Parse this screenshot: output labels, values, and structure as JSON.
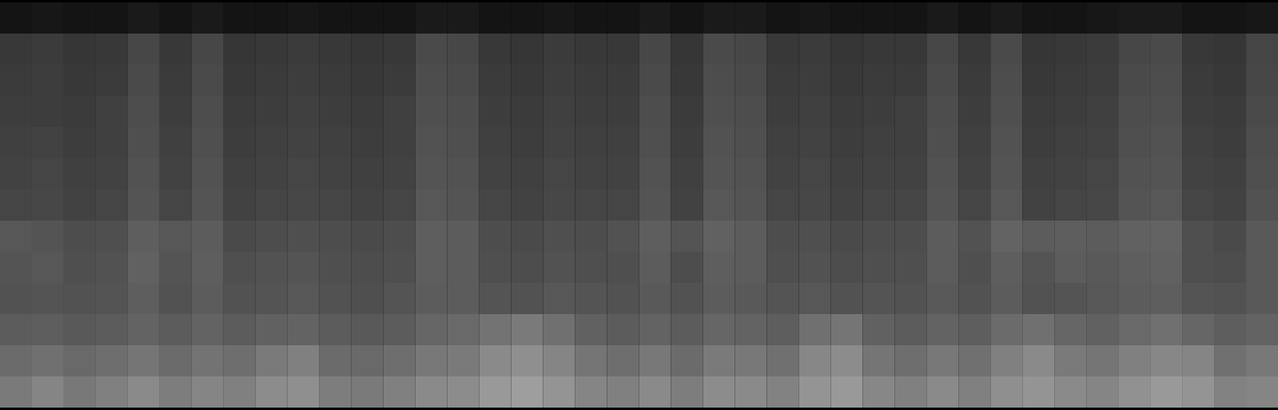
{
  "chart_data": {
    "type": "heatmap",
    "tick_labels": false,
    "color_range": [
      0,
      100
    ],
    "colors": [
      "#000000",
      "#ffffff"
    ],
    "cells": [
      [
        8,
        9,
        8,
        8,
        10,
        8,
        10,
        8,
        8,
        9,
        8,
        8,
        8,
        10,
        10,
        8,
        8,
        9,
        8,
        8,
        10,
        8,
        10,
        10,
        8,
        9,
        8,
        8,
        8,
        10,
        8,
        10,
        8,
        8,
        9,
        10,
        10,
        8,
        8,
        9
      ],
      [
        22,
        23,
        21,
        22,
        28,
        22,
        28,
        21,
        22,
        23,
        22,
        21,
        22,
        29,
        28,
        22,
        21,
        23,
        22,
        22,
        28,
        21,
        29,
        28,
        22,
        23,
        21,
        22,
        22,
        28,
        22,
        29,
        21,
        22,
        23,
        28,
        29,
        22,
        21,
        27
      ],
      [
        23,
        24,
        22,
        23,
        29,
        23,
        29,
        22,
        23,
        24,
        23,
        22,
        23,
        30,
        29,
        23,
        22,
        24,
        23,
        23,
        29,
        22,
        30,
        29,
        23,
        24,
        22,
        23,
        23,
        29,
        23,
        30,
        22,
        23,
        24,
        29,
        30,
        23,
        22,
        28
      ],
      [
        24,
        24,
        23,
        25,
        30,
        24,
        30,
        23,
        24,
        25,
        24,
        23,
        25,
        31,
        30,
        24,
        23,
        25,
        24,
        24,
        30,
        23,
        31,
        30,
        24,
        25,
        23,
        24,
        25,
        30,
        24,
        31,
        23,
        24,
        25,
        30,
        31,
        24,
        23,
        29
      ],
      [
        25,
        26,
        24,
        25,
        31,
        25,
        31,
        24,
        25,
        26,
        25,
        24,
        25,
        32,
        31,
        25,
        24,
        26,
        25,
        25,
        31,
        24,
        32,
        31,
        25,
        26,
        24,
        25,
        25,
        31,
        25,
        32,
        24,
        25,
        26,
        31,
        32,
        25,
        24,
        30
      ],
      [
        26,
        27,
        25,
        26,
        32,
        26,
        32,
        25,
        26,
        27,
        26,
        25,
        26,
        33,
        32,
        26,
        25,
        27,
        26,
        26,
        32,
        25,
        33,
        32,
        26,
        27,
        25,
        26,
        26,
        32,
        26,
        33,
        25,
        26,
        27,
        32,
        33,
        26,
        25,
        31
      ],
      [
        27,
        28,
        26,
        27,
        33,
        27,
        33,
        26,
        27,
        28,
        27,
        26,
        27,
        34,
        33,
        27,
        26,
        28,
        27,
        27,
        33,
        26,
        34,
        33,
        27,
        28,
        26,
        27,
        27,
        33,
        27,
        34,
        26,
        27,
        28,
        33,
        34,
        27,
        26,
        32
      ],
      [
        34,
        33,
        30,
        31,
        37,
        34,
        36,
        29,
        30,
        31,
        30,
        29,
        30,
        37,
        36,
        30,
        29,
        31,
        30,
        32,
        37,
        33,
        38,
        36,
        30,
        31,
        29,
        30,
        30,
        36,
        32,
        39,
        36,
        37,
        36,
        38,
        39,
        31,
        29,
        35
      ],
      [
        33,
        34,
        31,
        32,
        38,
        33,
        37,
        31,
        32,
        33,
        31,
        30,
        31,
        37,
        36,
        31,
        30,
        32,
        31,
        31,
        36,
        30,
        37,
        36,
        31,
        32,
        30,
        31,
        31,
        36,
        31,
        37,
        33,
        36,
        35,
        37,
        38,
        31,
        30,
        35
      ],
      [
        32,
        33,
        32,
        33,
        37,
        32,
        36,
        32,
        33,
        34,
        32,
        31,
        33,
        36,
        36,
        33,
        32,
        34,
        33,
        32,
        35,
        32,
        36,
        35,
        33,
        34,
        32,
        33,
        32,
        35,
        32,
        36,
        32,
        33,
        34,
        36,
        37,
        33,
        32,
        35
      ],
      [
        36,
        37,
        35,
        36,
        39,
        36,
        39,
        36,
        38,
        39,
        36,
        35,
        36,
        40,
        41,
        45,
        48,
        44,
        38,
        36,
        39,
        36,
        40,
        39,
        37,
        44,
        46,
        38,
        36,
        39,
        37,
        42,
        44,
        40,
        38,
        41,
        44,
        40,
        37,
        39
      ],
      [
        42,
        44,
        41,
        43,
        46,
        42,
        45,
        43,
        48,
        50,
        42,
        41,
        43,
        47,
        48,
        54,
        56,
        52,
        46,
        43,
        47,
        42,
        48,
        47,
        44,
        53,
        55,
        46,
        43,
        47,
        44,
        50,
        54,
        48,
        46,
        50,
        53,
        52,
        44,
        47
      ],
      [
        48,
        52,
        47,
        50,
        54,
        49,
        52,
        50,
        55,
        56,
        49,
        48,
        50,
        54,
        55,
        60,
        62,
        58,
        52,
        50,
        54,
        49,
        55,
        54,
        51,
        58,
        60,
        53,
        50,
        54,
        50,
        56,
        58,
        54,
        52,
        57,
        60,
        58,
        51,
        52
      ]
    ]
  }
}
